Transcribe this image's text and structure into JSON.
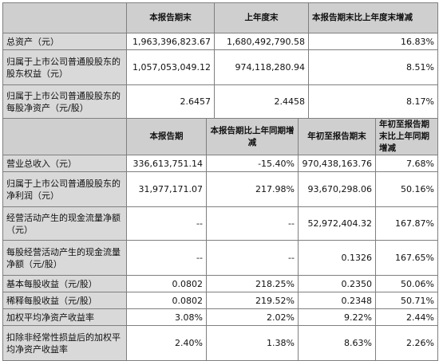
{
  "balance_section": {
    "headers": [
      "本报告期末",
      "上年度末",
      "本报告期末比上年度末增减"
    ],
    "rows": [
      {
        "label": "总资产（元）",
        "values": [
          "1,963,396,823.67",
          "1,680,492,790.58",
          "16.83%"
        ]
      },
      {
        "label": "归属于上市公司普通股股东的股东权益（元）",
        "values": [
          "1,057,053,049.12",
          "974,118,280.94",
          "8.51%"
        ]
      },
      {
        "label": "归属于上市公司普通股股东的每股净资产（元/股）",
        "values": [
          "2.6457",
          "2.4458",
          "8.17%"
        ]
      }
    ]
  },
  "income_section": {
    "headers": [
      "本报告期",
      "本报告期比上年同期增减",
      "年初至报告期末",
      "年初至报告期末比上年同期增减"
    ],
    "rows": [
      {
        "label": "营业总收入（元）",
        "values": [
          "336,613,751.14",
          "-15.40%",
          "970,438,163.76",
          "7.68%"
        ]
      },
      {
        "label": "归属于上市公司普通股股东的净利润（元）",
        "values": [
          "31,977,171.07",
          "217.98%",
          "93,670,298.06",
          "50.16%"
        ]
      },
      {
        "label": "经营活动产生的现金流量净额（元）",
        "values": [
          "--",
          "--",
          "52,972,404.32",
          "167.87%"
        ]
      },
      {
        "label": "每股经营活动产生的现金流量净额（元/股）",
        "values": [
          "--",
          "--",
          "0.1326",
          "167.65%"
        ]
      },
      {
        "label": "基本每股收益（元/股）",
        "values": [
          "0.0802",
          "218.25%",
          "0.2350",
          "50.06%"
        ]
      },
      {
        "label": "稀释每股收益（元/股）",
        "values": [
          "0.0802",
          "219.52%",
          "0.2348",
          "50.71%"
        ]
      },
      {
        "label": "加权平均净资产收益率",
        "values": [
          "3.08%",
          "2.02%",
          "9.22%",
          "2.44%"
        ]
      },
      {
        "label": "扣除非经常性损益后的加权平均净资产收益率",
        "values": [
          "2.40%",
          "1.38%",
          "8.63%",
          "2.26%"
        ]
      }
    ]
  }
}
